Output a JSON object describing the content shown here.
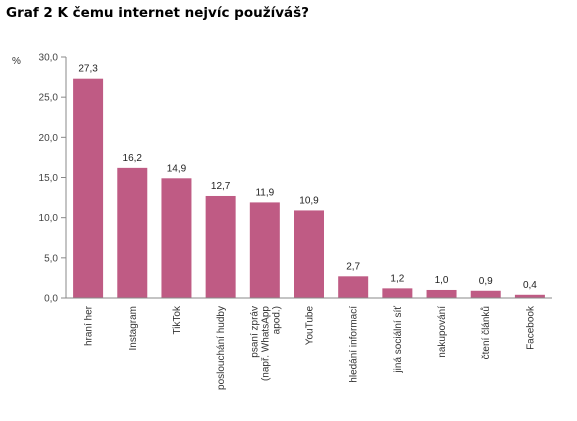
{
  "chart_data": {
    "type": "bar",
    "title": "Graf 2 K čemu internet nejvíc používáš?",
    "ylabel": "%",
    "xlabel": "",
    "ylim": [
      0,
      30
    ],
    "yticks": [
      "0,0",
      "5,0",
      "10,0",
      "15,0",
      "20,0",
      "25,0",
      "30,0"
    ],
    "grid": false,
    "bar_color": "#bf5b84",
    "categories": [
      [
        "hraní her"
      ],
      [
        "Instagram"
      ],
      [
        "TikTok"
      ],
      [
        "poslouchání hudby"
      ],
      [
        "psaní zpráv",
        "(např. WhatsApp",
        "apod.)"
      ],
      [
        "YouTube"
      ],
      [
        "hledání informací"
      ],
      [
        "jiná sociální síť"
      ],
      [
        "nakupování"
      ],
      [
        "čtení článků"
      ],
      [
        "Facebook"
      ]
    ],
    "values": [
      27.3,
      16.2,
      14.9,
      12.7,
      11.9,
      10.9,
      2.7,
      1.2,
      1.0,
      0.9,
      0.4
    ],
    "value_labels": [
      "27,3",
      "16,2",
      "14,9",
      "12,7",
      "11,9",
      "10,9",
      "2,7",
      "1,2",
      "1,0",
      "0,9",
      "0,4"
    ]
  }
}
